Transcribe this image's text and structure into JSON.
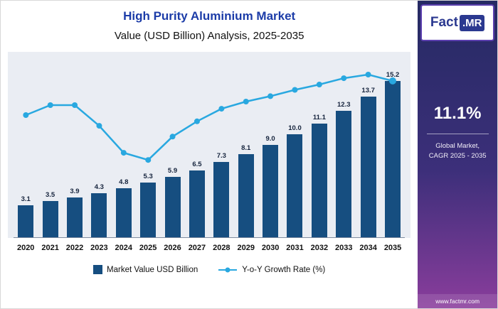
{
  "header": {
    "title": "High Purity Aluminium Market",
    "subtitle": "Value (USD Billion) Analysis, 2025-2035"
  },
  "chart_data": {
    "type": "combo",
    "categories": [
      "2020",
      "2021",
      "2022",
      "2023",
      "2024",
      "2025",
      "2026",
      "2027",
      "2028",
      "2029",
      "2030",
      "2031",
      "2032",
      "2033",
      "2034",
      "2035"
    ],
    "series": [
      {
        "name": "Market Value USD Billion",
        "type": "bar",
        "axis": "primary",
        "values": [
          3.1,
          3.5,
          3.9,
          4.3,
          4.8,
          5.3,
          5.9,
          6.5,
          7.3,
          8.1,
          9.0,
          10.0,
          11.1,
          12.3,
          13.7,
          15.2
        ]
      },
      {
        "name": "Y-o-Y Growth Rate (%)",
        "type": "line",
        "axis": "secondary",
        "values_estimated": [
          13.6,
          14.7,
          14.7,
          12.4,
          9.4,
          8.6,
          11.2,
          12.9,
          14.3,
          15.1,
          15.7,
          16.4,
          17.0,
          17.7,
          18.1,
          17.4
        ]
      }
    ],
    "title": "High Purity Aluminium Market",
    "subtitle": "Value (USD Billion) Analysis, 2025-2035",
    "xlabel": "",
    "ylabel": "",
    "ylim": [
      0,
      17.5
    ],
    "ylim_secondary": [
      0,
      20
    ],
    "grid": false,
    "legend_position": "bottom",
    "data_labels": true
  },
  "legend": {
    "bar_label": "Market Value USD Billion",
    "line_label": "Y-o-Y Growth Rate (%)"
  },
  "sidebar": {
    "logo": {
      "part1": "Fact",
      "part2": ".MR"
    },
    "stat_value": "11.1%",
    "stat_caption_line1": "Global Market,",
    "stat_caption_line2": "CAGR 2025 - 2035",
    "footer": "www.factmr.com"
  },
  "colors": {
    "bar": "#164e80",
    "line": "#29a8e0",
    "title": "#1c3ca8",
    "chart_background": "#eaedf3",
    "side_gradient_top": "#252a63",
    "side_gradient_bottom": "#8a3d9c",
    "logo_blue": "#2b3990"
  }
}
